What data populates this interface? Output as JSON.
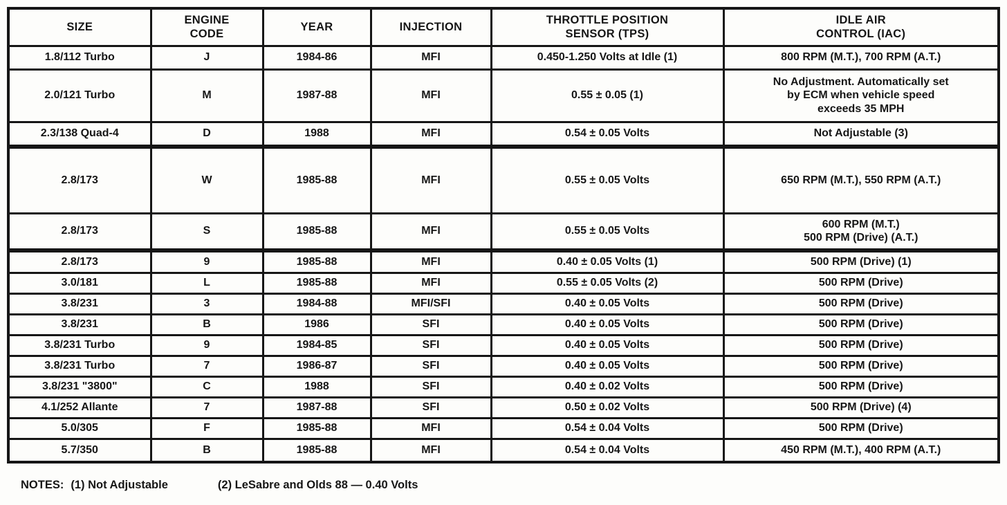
{
  "colors": {
    "background": "#fdfdfb",
    "text": "#161616",
    "border": "#161616"
  },
  "table": {
    "headers": [
      "SIZE",
      "ENGINE\nCODE",
      "YEAR",
      "INJECTION",
      "THROTTLE POSITION\nSENSOR (TPS)",
      "IDLE AIR\nCONTROL (IAC)"
    ],
    "rows": [
      {
        "size": "1.8/112 Turbo",
        "engine_code": "J",
        "year": "1984-86",
        "injection": "MFI",
        "tps": "0.450-1.250 Volts at Idle (1)",
        "iac": "800 RPM (M.T.), 700 RPM (A.T.)"
      },
      {
        "size": "2.0/121 Turbo",
        "engine_code": "M",
        "year": "1987-88",
        "injection": "MFI",
        "tps": "0.55 ± 0.05 (1)",
        "iac": "No Adjustment. Automatically set\nby ECM when vehicle speed\nexceeds 35 MPH"
      },
      {
        "size": "2.3/138 Quad-4",
        "engine_code": "D",
        "year": "1988",
        "injection": "MFI",
        "tps": "0.54 ± 0.05 Volts",
        "iac": "Not Adjustable (3)"
      },
      {
        "size": "2.8/173",
        "engine_code": "W",
        "year": "1985-88",
        "injection": "MFI",
        "tps": "0.55 ± 0.05 Volts",
        "iac": "650 RPM (M.T.), 550 RPM (A.T.)"
      },
      {
        "size": "2.8/173",
        "engine_code": "S",
        "year": "1985-88",
        "injection": "MFI",
        "tps": "0.55 ± 0.05 Volts",
        "iac": "600 RPM (M.T.)\n500 RPM (Drive) (A.T.)"
      },
      {
        "size": "2.8/173",
        "engine_code": "9",
        "year": "1985-88",
        "injection": "MFI",
        "tps": "0.40 ± 0.05 Volts (1)",
        "iac": "500 RPM (Drive) (1)"
      },
      {
        "size": "3.0/181",
        "engine_code": "L",
        "year": "1985-88",
        "injection": "MFI",
        "tps": "0.55 ± 0.05 Volts (2)",
        "iac": "500 RPM (Drive)"
      },
      {
        "size": "3.8/231",
        "engine_code": "3",
        "year": "1984-88",
        "injection": "MFI/SFI",
        "tps": "0.40 ± 0.05 Volts",
        "iac": "500 RPM (Drive)"
      },
      {
        "size": "3.8/231",
        "engine_code": "B",
        "year": "1986",
        "injection": "SFI",
        "tps": "0.40 ± 0.05 Volts",
        "iac": "500 RPM (Drive)"
      },
      {
        "size": "3.8/231 Turbo",
        "engine_code": "9",
        "year": "1984-85",
        "injection": "SFI",
        "tps": "0.40 ± 0.05 Volts",
        "iac": "500 RPM (Drive)"
      },
      {
        "size": "3.8/231 Turbo",
        "engine_code": "7",
        "year": "1986-87",
        "injection": "SFI",
        "tps": "0.40 ± 0.05 Volts",
        "iac": "500 RPM (Drive)"
      },
      {
        "size": "3.8/231 \"3800\"",
        "engine_code": "C",
        "year": "1988",
        "injection": "SFI",
        "tps": "0.40 ± 0.02 Volts",
        "iac": "500 RPM (Drive)"
      },
      {
        "size": "4.1/252 Allante",
        "engine_code": "7",
        "year": "1987-88",
        "injection": "SFI",
        "tps": "0.50 ± 0.02 Volts",
        "iac": "500 RPM (Drive) (4)"
      },
      {
        "size": "5.0/305",
        "engine_code": "F",
        "year": "1985-88",
        "injection": "MFI",
        "tps": "0.54 ± 0.04 Volts",
        "iac": "500 RPM (Drive)"
      },
      {
        "size": "5.7/350",
        "engine_code": "B",
        "year": "1985-88",
        "injection": "MFI",
        "tps": "0.54 ± 0.04 Volts",
        "iac": "450 RPM (M.T.), 400 RPM (A.T.)"
      }
    ]
  },
  "notes": {
    "label": "NOTES:",
    "items": [
      "(1) Not Adjustable",
      "(2) LeSabre and Olds 88 — 0.40 Volts"
    ]
  }
}
